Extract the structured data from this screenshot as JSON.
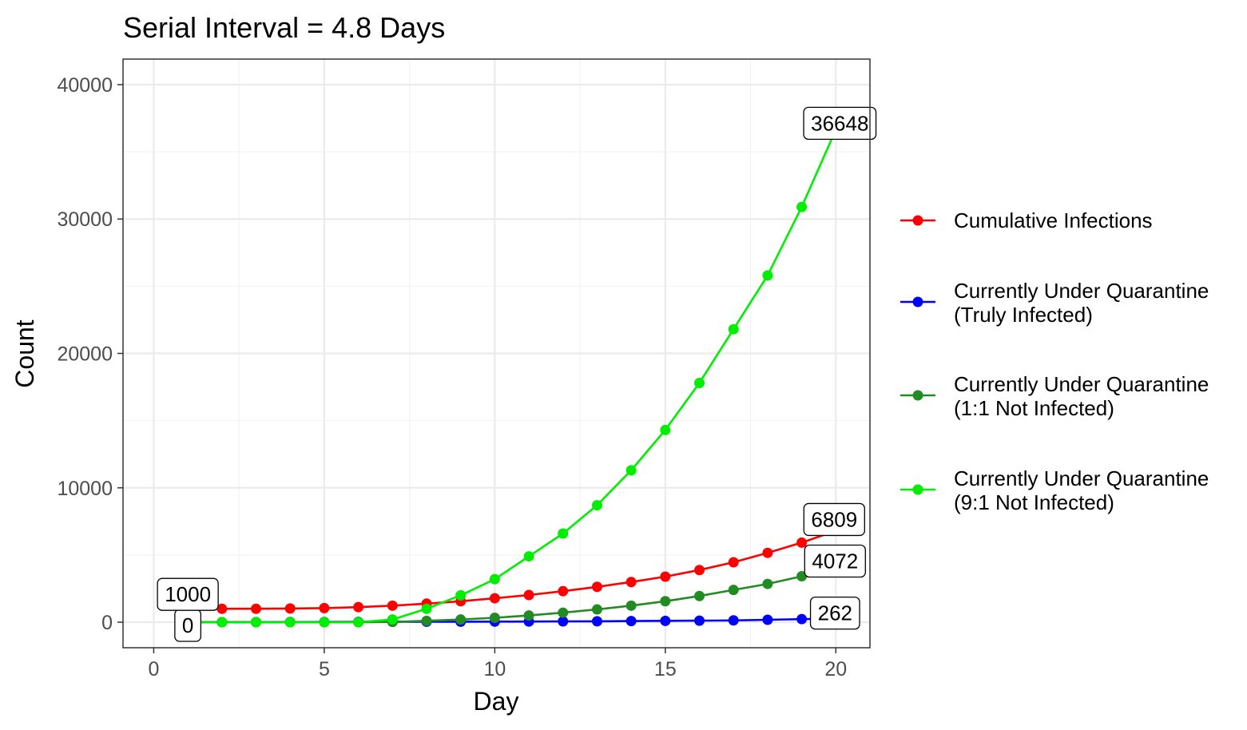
{
  "chart_data": {
    "type": "line",
    "title": "Serial Interval = 4.8 Days",
    "xlabel": "Day",
    "ylabel": "Count",
    "xlim": [
      -0.9,
      21.0
    ],
    "ylim": [
      -1900,
      41900
    ],
    "x_ticks": [
      0,
      5,
      10,
      15,
      20
    ],
    "y_ticks": [
      0,
      10000,
      20000,
      30000,
      40000
    ],
    "x_tick_labels": [
      "0",
      "5",
      "10",
      "15",
      "20"
    ],
    "y_tick_labels": [
      "0",
      "10000",
      "20000",
      "30000",
      "40000"
    ],
    "grid": true,
    "legend_position": "right",
    "x": [
      1,
      2,
      3,
      4,
      5,
      6,
      7,
      8,
      9,
      10,
      11,
      12,
      13,
      14,
      15,
      16,
      17,
      18,
      19,
      20
    ],
    "series": [
      {
        "name": "Cumulative Infections",
        "color": "#ff0000",
        "values": [
          1000,
          1000,
          1000,
          1020,
          1050,
          1120,
          1230,
          1380,
          1560,
          1780,
          2020,
          2310,
          2630,
          2990,
          3390,
          3880,
          4460,
          5160,
          5920,
          6809
        ],
        "end_label": "6809",
        "start_label": "1000"
      },
      {
        "name": "Currently Under Quarantine\n(Truly Infected)",
        "color": "#0000ff",
        "values": [
          0,
          5,
          10,
          15,
          20,
          25,
          30,
          35,
          40,
          45,
          50,
          60,
          70,
          85,
          100,
          115,
          135,
          180,
          230,
          262
        ],
        "end_label": "262",
        "start_label": "0"
      },
      {
        "name": "Currently Under Quarantine\n(1:1 Not Infected)",
        "color": "#228b22",
        "values": [
          0,
          0,
          0,
          0,
          0,
          0,
          20,
          100,
          200,
          330,
          500,
          710,
          950,
          1230,
          1560,
          1950,
          2400,
          2850,
          3420,
          4072
        ],
        "end_label": "4072"
      },
      {
        "name": "Currently Under Quarantine\n(9:1 Not Infected)",
        "color": "#00ee00",
        "values": [
          0,
          0,
          0,
          0,
          0,
          0,
          200,
          1000,
          2000,
          3200,
          4900,
          6600,
          8700,
          11300,
          14300,
          17800,
          21800,
          25800,
          30900,
          36648
        ],
        "end_label": "36648"
      }
    ]
  }
}
